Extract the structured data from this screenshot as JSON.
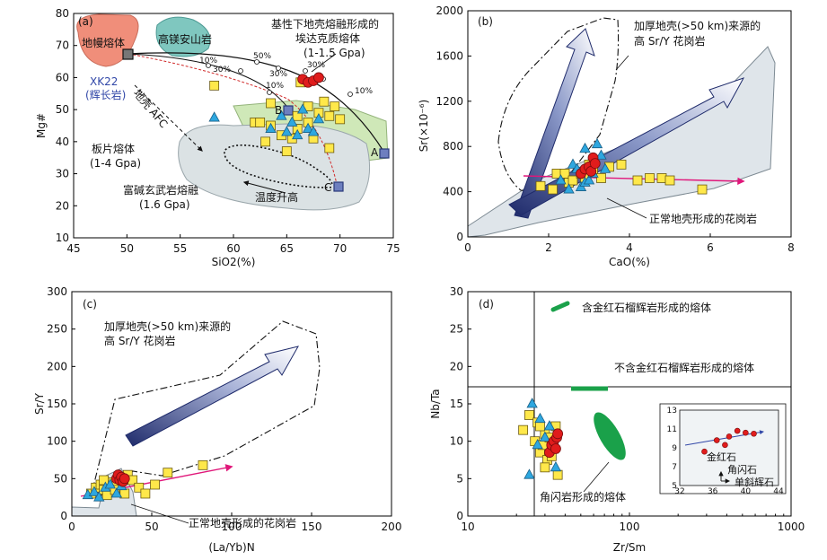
{
  "chart_data": [
    {
      "id": "a",
      "type": "scatter",
      "panel_label": "(a)",
      "xlabel": "SiO2(%)",
      "ylabel": "Mg#",
      "xlim": [
        45,
        75
      ],
      "ylim": [
        10,
        80
      ],
      "xticks": [
        "45",
        "50",
        "55",
        "60",
        "65",
        "70",
        "75"
      ],
      "yticks": [
        "10",
        "20",
        "30",
        "40",
        "50",
        "60",
        "70",
        "80"
      ],
      "labels": {
        "mantle": "地幔熔体",
        "highmg": "高镁安山岩",
        "basaltic": "基性下地壳熔融形成的",
        "adakite": "埃达克质熔体",
        "adakite_p": "(1-1.5 Gpa)",
        "xk22": "XK22",
        "gabbro": "(辉长岩)",
        "afc": "地壳 AFC",
        "slab": "板片熔体",
        "slab_p": "(1-4 Gpa)",
        "kbasalt": "富碱玄武岩熔融",
        "kbasalt_p": "(1.6 Gpa)",
        "temp": "温度升高",
        "pA": "A",
        "pB": "B",
        "pC": "C",
        "p10a": "10%",
        "p30a": "30%",
        "p50": "50%",
        "p10b": "10%",
        "p30b": "30%",
        "p30c": "30%",
        "p10c": "10%"
      },
      "squares": [
        [
          58.2,
          57.5
        ],
        [
          62,
          46
        ],
        [
          62.5,
          46
        ],
        [
          63.5,
          45
        ],
        [
          63,
          40
        ],
        [
          63.5,
          52
        ],
        [
          64.5,
          42
        ],
        [
          65,
          37
        ],
        [
          65.5,
          41
        ],
        [
          66,
          48
        ],
        [
          66,
          44
        ],
        [
          66.3,
          58.5
        ],
        [
          67,
          46
        ],
        [
          67,
          51
        ],
        [
          67.5,
          41
        ],
        [
          68,
          49
        ],
        [
          68.5,
          52.5
        ],
        [
          69,
          38
        ],
        [
          69,
          48
        ],
        [
          69.5,
          51
        ],
        [
          70,
          47
        ]
      ],
      "triangles": [
        [
          58.2,
          47.5
        ],
        [
          63.5,
          44
        ],
        [
          64.5,
          48
        ],
        [
          65,
          43
        ],
        [
          65.5,
          46
        ],
        [
          66,
          42
        ],
        [
          66.5,
          50
        ],
        [
          67,
          44
        ],
        [
          67.5,
          43
        ],
        [
          68,
          47
        ]
      ],
      "circles": [
        [
          66.5,
          59.5
        ],
        [
          67,
          58.5
        ],
        [
          67.5,
          59
        ],
        [
          68,
          60
        ]
      ]
    },
    {
      "id": "b",
      "type": "scatter",
      "panel_label": "(b)",
      "xlabel": "CaO(%)",
      "ylabel": "Sr(×10⁻⁶)",
      "xlim": [
        0,
        8
      ],
      "ylim": [
        0,
        2000
      ],
      "xticks": [
        "0",
        "2",
        "4",
        "6",
        "8"
      ],
      "yticks": [
        "0",
        "400",
        "800",
        "1200",
        "1600",
        "2000"
      ],
      "labels": {
        "thick": "加厚地壳(>50 km)来源的",
        "thick2": "高 Sr/Y 花岗岩",
        "normal": "正常地壳形成的花岗岩"
      },
      "squares": [
        [
          1.8,
          450
        ],
        [
          2.1,
          420
        ],
        [
          2.2,
          560
        ],
        [
          2.4,
          560
        ],
        [
          2.5,
          480
        ],
        [
          2.6,
          500
        ],
        [
          2.8,
          560
        ],
        [
          2.9,
          520
        ],
        [
          3.0,
          640
        ],
        [
          3.1,
          600
        ],
        [
          3.3,
          520
        ],
        [
          3.5,
          620
        ],
        [
          3.8,
          640
        ],
        [
          4.2,
          500
        ],
        [
          4.5,
          520
        ],
        [
          4.8,
          520
        ],
        [
          5.0,
          500
        ],
        [
          5.8,
          420
        ]
      ],
      "triangles": [
        [
          2.3,
          500
        ],
        [
          2.5,
          420
        ],
        [
          2.6,
          640
        ],
        [
          2.7,
          600
        ],
        [
          2.8,
          440
        ],
        [
          2.9,
          480
        ],
        [
          3.0,
          500
        ],
        [
          3.1,
          560
        ],
        [
          3.2,
          820
        ],
        [
          3.3,
          720
        ],
        [
          3.4,
          600
        ],
        [
          2.9,
          780
        ]
      ],
      "circles": [
        [
          2.8,
          560
        ],
        [
          2.9,
          600
        ],
        [
          3.0,
          620
        ],
        [
          3.05,
          580
        ],
        [
          3.1,
          700
        ],
        [
          3.15,
          650
        ]
      ]
    },
    {
      "id": "c",
      "type": "scatter",
      "panel_label": "(c)",
      "xlabel": "(La/Yb)N",
      "ylabel": "Sr/Y",
      "xlim": [
        0,
        200
      ],
      "ylim": [
        0,
        300
      ],
      "xticks": [
        "0",
        "50",
        "100",
        "150",
        "200"
      ],
      "yticks": [
        "0",
        "50",
        "100",
        "150",
        "200",
        "250",
        "300"
      ],
      "labels": {
        "thick": "加厚地壳(>50 km)来源的",
        "thick2": "高 Sr/Y 花岗岩",
        "normal": "正常地壳形成的花岗岩"
      },
      "squares": [
        [
          12,
          30
        ],
        [
          15,
          38
        ],
        [
          18,
          42
        ],
        [
          20,
          35
        ],
        [
          22,
          28
        ],
        [
          25,
          45
        ],
        [
          28,
          40
        ],
        [
          30,
          52
        ],
        [
          33,
          30
        ],
        [
          35,
          55
        ],
        [
          38,
          48
        ],
        [
          42,
          38
        ],
        [
          46,
          30
        ],
        [
          52,
          42
        ],
        [
          60,
          58
        ],
        [
          82,
          68
        ],
        [
          20,
          48
        ],
        [
          27,
          35
        ]
      ],
      "triangles": [
        [
          10,
          28
        ],
        [
          14,
          32
        ],
        [
          17,
          25
        ],
        [
          21,
          38
        ],
        [
          24,
          42
        ],
        [
          28,
          30
        ],
        [
          31,
          40
        ]
      ],
      "circles": [
        [
          28,
          50
        ],
        [
          29,
          55
        ],
        [
          30,
          48
        ],
        [
          31,
          52
        ],
        [
          32,
          46
        ],
        [
          33,
          50
        ]
      ]
    },
    {
      "id": "d",
      "type": "scatter",
      "panel_label": "(d)",
      "xlabel": "Zr/Sm",
      "ylabel": "Nb/Ta",
      "xscale": "log",
      "xlim": [
        10,
        1000
      ],
      "ylim": [
        0,
        30
      ],
      "xticks": [
        "10",
        "100",
        "1000"
      ],
      "yticks": [
        "0",
        "5",
        "10",
        "15",
        "20",
        "25",
        "30"
      ],
      "labels": {
        "rutile": "含金红石榴辉岩形成的熔体",
        "norutile": "不含金红石榴辉岩形成的熔体",
        "amph": "角闪岩形成的熔体",
        "rutile_min": "金红石",
        "amph_min": "角闪石",
        "cpx_min": "单斜辉石",
        "inset_xticks": [
          "32",
          "36",
          "40",
          "44"
        ],
        "inset_yticks": [
          "5",
          "7",
          "9",
          "11",
          "13"
        ]
      },
      "squares": [
        [
          22,
          11.5
        ],
        [
          24,
          13.5
        ],
        [
          26,
          10
        ],
        [
          27,
          12.5
        ],
        [
          28,
          8.5
        ],
        [
          29,
          9.5
        ],
        [
          30,
          11
        ],
        [
          31,
          7.5
        ],
        [
          32,
          10.5
        ],
        [
          33,
          8
        ],
        [
          34,
          9
        ],
        [
          35,
          12
        ],
        [
          36,
          5.5
        ],
        [
          30,
          6.5
        ],
        [
          28,
          12
        ]
      ],
      "triangles": [
        [
          24,
          5.5
        ],
        [
          25,
          15
        ],
        [
          27,
          9.5
        ],
        [
          28,
          13
        ],
        [
          30,
          10.5
        ],
        [
          32,
          12
        ],
        [
          35,
          6.5
        ],
        [
          34,
          10
        ]
      ],
      "circles": [
        [
          32,
          8.5
        ],
        [
          33,
          9.5
        ],
        [
          34,
          10
        ],
        [
          35,
          9
        ],
        [
          35.5,
          10.5
        ],
        [
          36,
          11
        ]
      ],
      "inset_circles": [
        [
          35,
          8.6
        ],
        [
          36.5,
          9.8
        ],
        [
          37.5,
          9.3
        ],
        [
          38,
          10.2
        ],
        [
          39,
          10.8
        ],
        [
          40,
          10.6
        ],
        [
          41,
          10.5
        ]
      ]
    }
  ]
}
